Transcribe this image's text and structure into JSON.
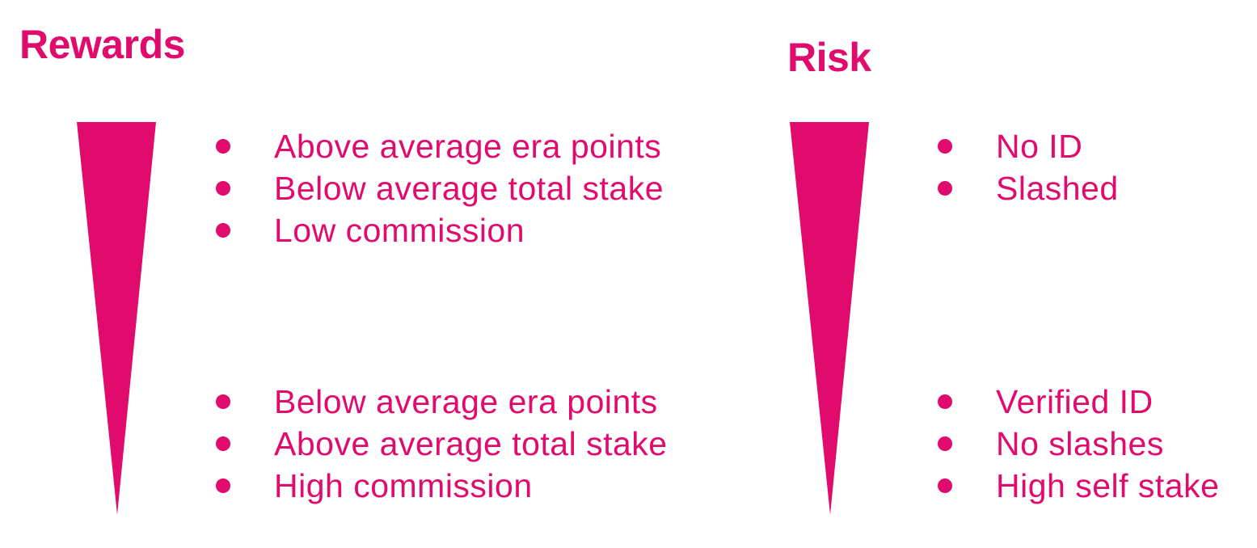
{
  "accent_color": "#e10a6d",
  "rewards": {
    "title": "Rewards",
    "high_items": [
      "Above average era points",
      "Below average total stake",
      "Low commission"
    ],
    "low_items": [
      "Below average era points",
      "Above average total stake",
      "High commission"
    ]
  },
  "risk": {
    "title": "Risk",
    "high_items": [
      "No ID",
      "Slashed"
    ],
    "low_items": [
      "Verified ID",
      "No slashes",
      "High self stake"
    ]
  }
}
